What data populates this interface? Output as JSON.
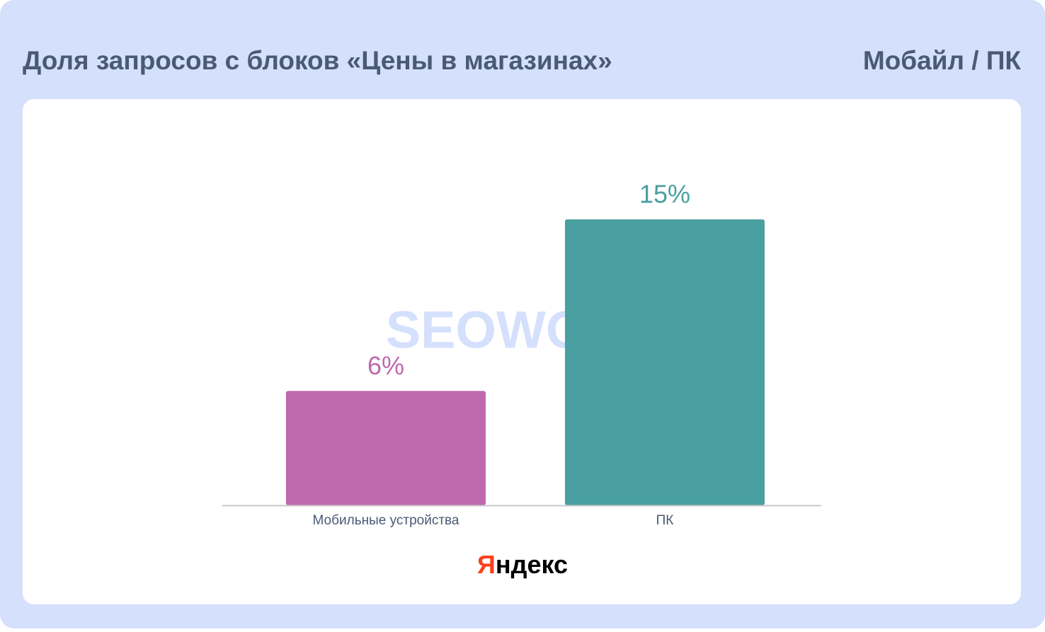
{
  "chart_data": {
    "type": "bar",
    "title": "Доля запросов с блоков «Цены в магазинах»",
    "subtitle": "Мобайл / ПК",
    "categories": [
      "Мобильные устройства",
      "ПК"
    ],
    "values": [
      6,
      15
    ],
    "value_labels": [
      "6%",
      "15%"
    ],
    "colors": [
      "#bf68ad",
      "#4a9fa0"
    ],
    "watermark": "SEOWORK",
    "source": "Яндекс"
  }
}
